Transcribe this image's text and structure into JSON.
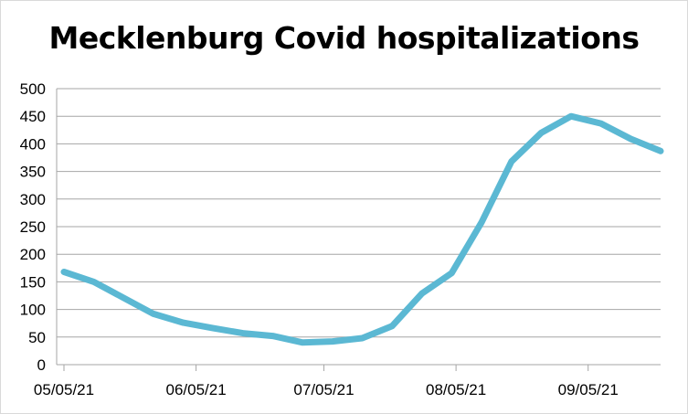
{
  "chart_data": {
    "type": "line",
    "title": "Mecklenburg Covid hospitalizations",
    "xlabel": "",
    "ylabel": "",
    "ylim": [
      0,
      500
    ],
    "yticks": [
      0,
      50,
      100,
      150,
      200,
      250,
      300,
      350,
      400,
      450,
      500
    ],
    "xtick_labels": [
      "05/05/21",
      "06/05/21",
      "07/05/21",
      "08/05/21",
      "09/05/21"
    ],
    "grid": true,
    "legend": "none",
    "line_color": "#5bb8d3",
    "series": [
      {
        "x": [
          "05/05/21",
          "05/12/21",
          "05/19/21",
          "05/26/21",
          "06/02/21",
          "06/09/21",
          "06/16/21",
          "06/23/21",
          "06/30/21",
          "07/07/21",
          "07/14/21",
          "07/21/21",
          "07/28/21",
          "08/04/21",
          "08/11/21",
          "08/18/21",
          "08/25/21",
          "09/01/21",
          "09/08/21",
          "09/15/21",
          "09/22/21"
        ],
        "values": [
          168,
          150,
          121,
          92,
          76,
          66,
          57,
          52,
          40,
          42,
          48,
          70,
          129,
          166,
          258,
          368,
          420,
          450,
          437,
          409,
          387
        ]
      }
    ]
  }
}
